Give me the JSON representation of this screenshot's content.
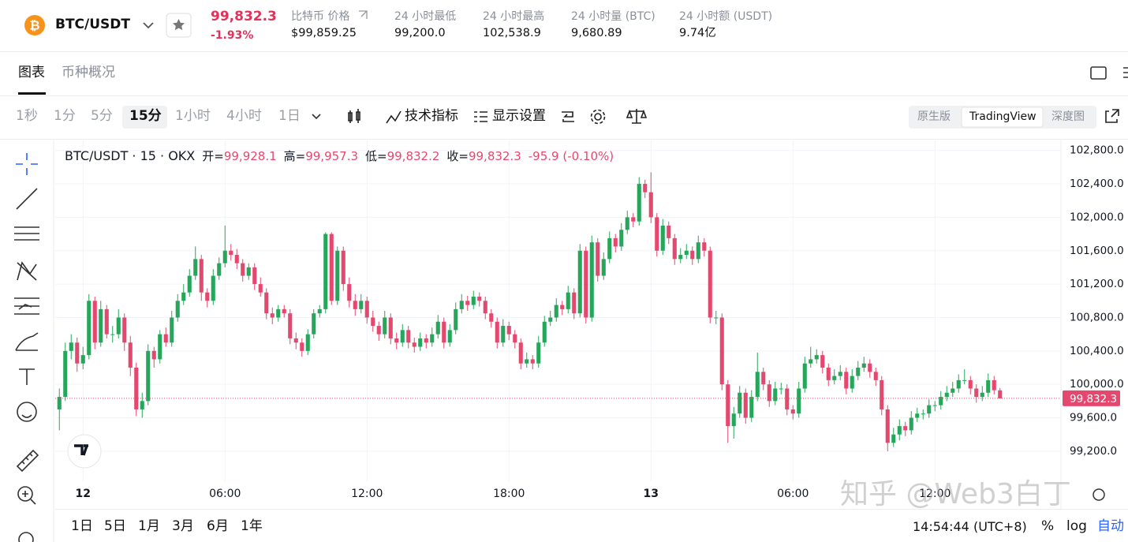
{
  "header": {
    "logo": "₿",
    "symbol": "BTC/USDT",
    "price": "99,832.3",
    "change": "-1.93%",
    "stats": [
      {
        "label": "比特币 价格",
        "value": "$99,859.25"
      },
      {
        "label": "24 小时最低",
        "value": "99,200.0"
      },
      {
        "label": "24 小时最高",
        "value": "102,538.9"
      },
      {
        "label": "24 小时量 (BTC)",
        "value": "9,680.89"
      },
      {
        "label": "24 小时额 (USDT)",
        "value": "9.74亿"
      }
    ]
  },
  "tabs": [
    "图表",
    "币种概况"
  ],
  "intervals": [
    "1秒",
    "1分",
    "5分",
    "15分",
    "1小时",
    "4小时",
    "1日"
  ],
  "toolbar": [
    "技术指标",
    "显示设置"
  ],
  "views": [
    "原生版",
    "TradingView",
    "深度图"
  ],
  "ranges": [
    "1日",
    "5日",
    "1月",
    "3月",
    "6月",
    "1年"
  ],
  "footer": {
    "time": "14:54:44 (UTC+8)",
    "percent": "%",
    "log": "log",
    "auto": "自动"
  },
  "watermark": "知乎 @Web3白丁",
  "chart_data": {
    "type": "candlestick",
    "legend": {
      "symbol": "BTC/USDT · 15 · OKX",
      "open_label": "开=",
      "open": "99,928.1",
      "high_label": "高=",
      "high": "99,957.3",
      "low_label": "低=",
      "low": "99,832.2",
      "close_label": "收=",
      "close": "99,832.3",
      "change": "-95.9 (-0.10%)"
    },
    "up_color": "#26a65b",
    "down_color": "#e5486e",
    "grid": true,
    "ylim": [
      98840,
      102920
    ],
    "yticks": [
      {
        "value": 99200,
        "label": "99,200.0"
      },
      {
        "value": 99600,
        "label": "99,600.0"
      },
      {
        "value": 100000,
        "label": "100,000.0"
      },
      {
        "value": 100400,
        "label": "100,400.0"
      },
      {
        "value": 100800,
        "label": "100,800.0"
      },
      {
        "value": 101200,
        "label": "101,200.0"
      },
      {
        "value": 101600,
        "label": "101,600.0"
      },
      {
        "value": 102000,
        "label": "102,000.0"
      },
      {
        "value": 102400,
        "label": "102,400.0"
      },
      {
        "value": 102800,
        "label": "102,800.0"
      }
    ],
    "xlim": [
      -0.7,
      169.3
    ],
    "xticks": [
      {
        "value": 4,
        "label": "12",
        "major": true
      },
      {
        "value": 28,
        "label": "06:00"
      },
      {
        "value": 52,
        "label": "12:00"
      },
      {
        "value": 76,
        "label": "18:00"
      },
      {
        "value": 100,
        "label": "13",
        "major": true
      },
      {
        "value": 124,
        "label": "06:00"
      },
      {
        "value": 148,
        "label": "12:00"
      }
    ],
    "last_price": {
      "value": 99832.3,
      "label": "99,832.3"
    },
    "candles": [
      [
        99700,
        99950,
        99450,
        99850
      ],
      [
        99850,
        100500,
        99800,
        100400
      ],
      [
        100400,
        100600,
        100300,
        100500
      ],
      [
        100500,
        100560,
        100150,
        100250
      ],
      [
        100250,
        100450,
        100180,
        100350
      ],
      [
        100350,
        101080,
        100300,
        101000
      ],
      [
        101000,
        101050,
        100420,
        100500
      ],
      [
        100500,
        101000,
        100450,
        100900
      ],
      [
        100900,
        100950,
        100550,
        100600
      ],
      [
        100600,
        100700,
        100500,
        100600
      ],
      [
        100600,
        100900,
        100550,
        100800
      ],
      [
        100800,
        100850,
        100400,
        100500
      ],
      [
        100500,
        100580,
        100100,
        100200
      ],
      [
        100200,
        100260,
        99620,
        99700
      ],
      [
        99700,
        99900,
        99600,
        99800
      ],
      [
        99800,
        100480,
        99750,
        100400
      ],
      [
        100400,
        100450,
        100200,
        100300
      ],
      [
        100300,
        100650,
        100250,
        100600
      ],
      [
        100600,
        100680,
        100450,
        100500
      ],
      [
        100500,
        100880,
        100450,
        100800
      ],
      [
        100800,
        101080,
        100750,
        101000
      ],
      [
        101000,
        101200,
        100950,
        101100
      ],
      [
        101100,
        101380,
        101050,
        101300
      ],
      [
        101300,
        101650,
        101250,
        101500
      ],
      [
        101500,
        101550,
        101000,
        101100
      ],
      [
        101100,
        101150,
        100920,
        101000
      ],
      [
        101000,
        101380,
        100950,
        101300
      ],
      [
        101300,
        101520,
        101250,
        101450
      ],
      [
        101450,
        101900,
        101400,
        101600
      ],
      [
        101600,
        101680,
        101480,
        101550
      ],
      [
        101550,
        101620,
        101380,
        101450
      ],
      [
        101450,
        101500,
        101230,
        101300
      ],
      [
        101300,
        101450,
        101250,
        101400
      ],
      [
        101400,
        101450,
        101130,
        101200
      ],
      [
        101200,
        101280,
        101050,
        101100
      ],
      [
        101100,
        101150,
        100780,
        100850
      ],
      [
        100850,
        100920,
        100720,
        100800
      ],
      [
        100800,
        100950,
        100750,
        100900
      ],
      [
        100900,
        100950,
        100800,
        100850
      ],
      [
        100850,
        100900,
        100480,
        100550
      ],
      [
        100550,
        100620,
        100420,
        100500
      ],
      [
        100500,
        100550,
        100330,
        100400
      ],
      [
        100400,
        100660,
        100350,
        100600
      ],
      [
        100600,
        100900,
        100550,
        100850
      ],
      [
        100850,
        100950,
        100800,
        100900
      ],
      [
        100900,
        101820,
        100850,
        101800
      ],
      [
        101800,
        101820,
        100950,
        101000
      ],
      [
        101000,
        101650,
        100950,
        101600
      ],
      [
        101600,
        101650,
        101120,
        101200
      ],
      [
        101200,
        101280,
        100920,
        101000
      ],
      [
        101000,
        101080,
        100820,
        100900
      ],
      [
        100900,
        101080,
        100850,
        101000
      ],
      [
        101000,
        101050,
        100730,
        100800
      ],
      [
        100800,
        100880,
        100630,
        100700
      ],
      [
        100700,
        100750,
        100520,
        100600
      ],
      [
        100600,
        100880,
        100550,
        100800
      ],
      [
        100800,
        100850,
        100480,
        100550
      ],
      [
        100550,
        100620,
        100420,
        100500
      ],
      [
        100500,
        100720,
        100450,
        100650
      ],
      [
        100650,
        100700,
        100430,
        100500
      ],
      [
        100500,
        100560,
        100380,
        100450
      ],
      [
        100450,
        100620,
        100400,
        100550
      ],
      [
        100550,
        100600,
        100430,
        100500
      ],
      [
        100500,
        100680,
        100450,
        100600
      ],
      [
        100600,
        100830,
        100550,
        100750
      ],
      [
        100750,
        100800,
        100430,
        100500
      ],
      [
        100500,
        100720,
        100450,
        100650
      ],
      [
        100650,
        100980,
        100600,
        100900
      ],
      [
        100900,
        101080,
        100850,
        101000
      ],
      [
        101000,
        101060,
        100880,
        100950
      ],
      [
        100950,
        101120,
        100900,
        101050
      ],
      [
        101050,
        101100,
        100930,
        101000
      ],
      [
        101000,
        101050,
        100780,
        100850
      ],
      [
        100850,
        100900,
        100680,
        100750
      ],
      [
        100750,
        100800,
        100430,
        100500
      ],
      [
        100500,
        100780,
        100450,
        100700
      ],
      [
        100700,
        100750,
        100530,
        100600
      ],
      [
        100600,
        100650,
        100430,
        100500
      ],
      [
        100500,
        100550,
        100180,
        100250
      ],
      [
        100250,
        100380,
        100200,
        100300
      ],
      [
        100300,
        100350,
        100180,
        100250
      ],
      [
        100250,
        100580,
        100200,
        100500
      ],
      [
        100500,
        100820,
        100450,
        100750
      ],
      [
        100750,
        100880,
        100700,
        100800
      ],
      [
        100800,
        101030,
        100750,
        100950
      ],
      [
        100950,
        101000,
        100830,
        100900
      ],
      [
        100900,
        101180,
        100850,
        101100
      ],
      [
        101100,
        101150,
        100780,
        100850
      ],
      [
        100850,
        101680,
        100800,
        101600
      ],
      [
        101600,
        101650,
        100730,
        100800
      ],
      [
        100800,
        101780,
        100750,
        101700
      ],
      [
        101700,
        101750,
        101230,
        101300
      ],
      [
        101300,
        101580,
        101250,
        101500
      ],
      [
        101500,
        101830,
        101450,
        101750
      ],
      [
        101750,
        101800,
        101580,
        101650
      ],
      [
        101650,
        101930,
        101600,
        101850
      ],
      [
        101850,
        102080,
        101800,
        102000
      ],
      [
        102000,
        102050,
        101880,
        101950
      ],
      [
        101950,
        102480,
        101900,
        102400
      ],
      [
        102400,
        102450,
        102230,
        102300
      ],
      [
        102300,
        102538.9,
        101930,
        102000
      ],
      [
        102000,
        102050,
        101530,
        101600
      ],
      [
        101600,
        101980,
        101550,
        101900
      ],
      [
        101900,
        101950,
        101680,
        101750
      ],
      [
        101750,
        101800,
        101430,
        101500
      ],
      [
        101500,
        101630,
        101450,
        101550
      ],
      [
        101550,
        101680,
        101500,
        101600
      ],
      [
        101600,
        101650,
        101430,
        101500
      ],
      [
        101500,
        101780,
        101450,
        101700
      ],
      [
        101700,
        101750,
        101530,
        101600
      ],
      [
        101600,
        101650,
        100730,
        100800
      ],
      [
        100800,
        100880,
        100720,
        100800
      ],
      [
        100800,
        100850,
        99930,
        100000
      ],
      [
        100000,
        100050,
        99300,
        99500
      ],
      [
        99500,
        99730,
        99350,
        99650
      ],
      [
        99650,
        99980,
        99600,
        99900
      ],
      [
        99900,
        99950,
        99530,
        99600
      ],
      [
        99600,
        99930,
        99550,
        99850
      ],
      [
        99850,
        100380,
        99800,
        100150
      ],
      [
        100150,
        100200,
        99930,
        100000
      ],
      [
        100000,
        100050,
        99730,
        99800
      ],
      [
        99800,
        100030,
        99750,
        99950
      ],
      [
        99950,
        100020,
        99880,
        99950
      ],
      [
        99950,
        100000,
        99630,
        99700
      ],
      [
        99700,
        99750,
        99580,
        99650
      ],
      [
        99650,
        100030,
        99600,
        99950
      ],
      [
        99950,
        100330,
        99900,
        100250
      ],
      [
        100250,
        100450,
        100200,
        100300
      ],
      [
        100300,
        100420,
        100250,
        100350
      ],
      [
        100350,
        100400,
        100130,
        100200
      ],
      [
        100200,
        100250,
        99980,
        100050
      ],
      [
        100050,
        100180,
        100000,
        100100
      ],
      [
        100100,
        100230,
        100050,
        100150
      ],
      [
        100150,
        100200,
        99880,
        99950
      ],
      [
        99950,
        100180,
        99900,
        100100
      ],
      [
        100100,
        100280,
        100050,
        100200
      ],
      [
        100200,
        100330,
        100150,
        100250
      ],
      [
        100250,
        100300,
        100080,
        100150
      ],
      [
        100150,
        100200,
        99980,
        100050
      ],
      [
        100050,
        100100,
        99630,
        99700
      ],
      [
        99700,
        99750,
        99200,
        99300
      ],
      [
        99300,
        99480,
        99250,
        99400
      ],
      [
        99400,
        99580,
        99330,
        99500
      ],
      [
        99500,
        99550,
        99380,
        99450
      ],
      [
        99450,
        99680,
        99400,
        99600
      ],
      [
        99600,
        99720,
        99550,
        99650
      ],
      [
        99650,
        99700,
        99580,
        99650
      ],
      [
        99650,
        99820,
        99600,
        99750
      ],
      [
        99750,
        99800,
        99680,
        99750
      ],
      [
        99750,
        99920,
        99700,
        99850
      ],
      [
        99850,
        99980,
        99800,
        99900
      ],
      [
        99900,
        100030,
        99850,
        99950
      ],
      [
        99950,
        100120,
        99900,
        100050
      ],
      [
        100050,
        100180,
        100000,
        100050
      ],
      [
        100050,
        100100,
        99880,
        99950
      ],
      [
        99950,
        100000,
        99780,
        99850
      ],
      [
        99850,
        99980,
        99800,
        99900
      ],
      [
        99900,
        100130,
        99850,
        100050
      ],
      [
        100050,
        100100,
        99880,
        99930
      ],
      [
        99928.1,
        99957.3,
        99832.2,
        99832.3
      ]
    ]
  }
}
